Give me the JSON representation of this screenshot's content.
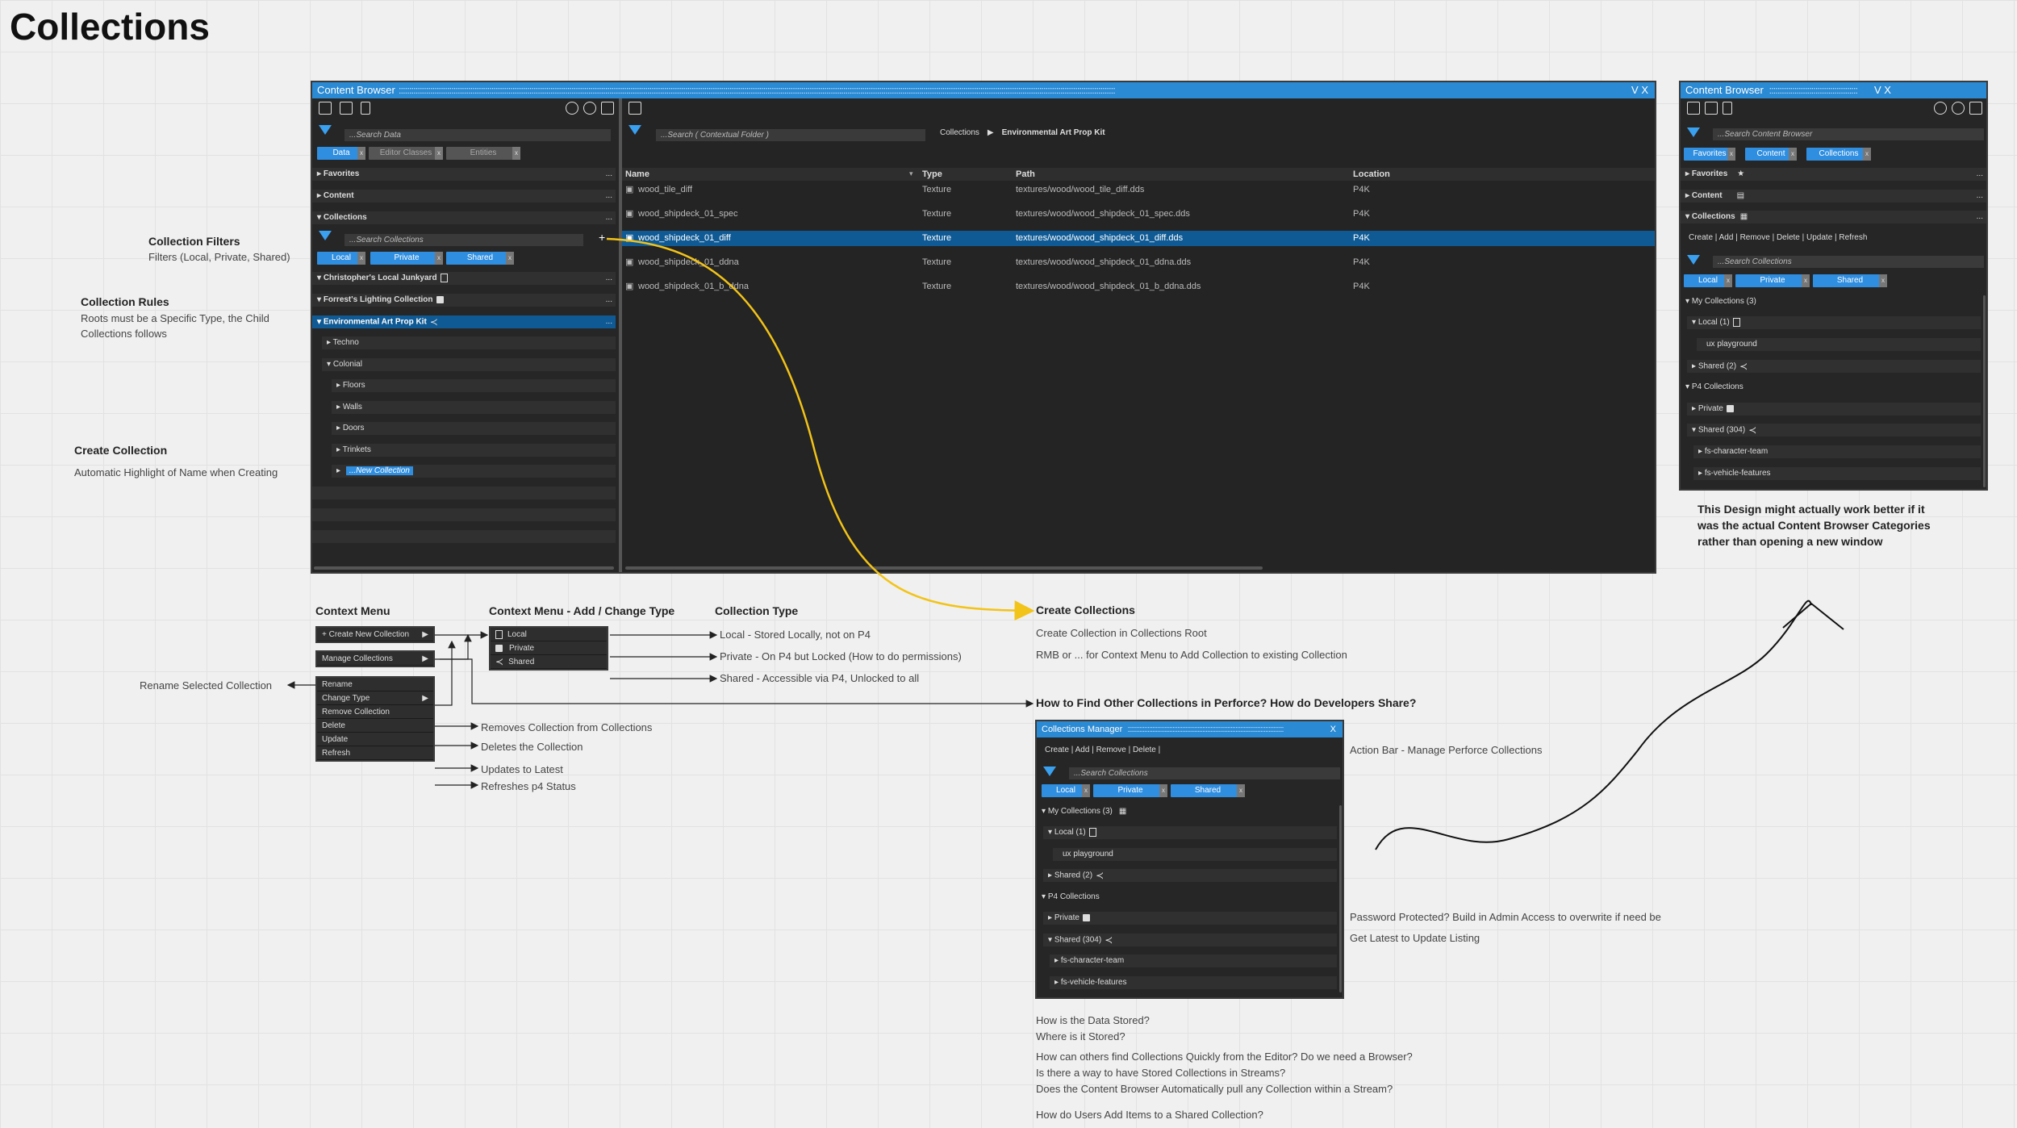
{
  "page": {
    "title": "Collections"
  },
  "notes": {
    "filters_title": "Collection Filters",
    "filters_text": "Filters (Local, Private, Shared)",
    "rules_title": "Collection Rules",
    "rules_text1": "Roots must be a Specific Type, the Child",
    "rules_text2": "Collections follows",
    "create_title": "Create Collection",
    "create_text": "Automatic Highlight of Name when Creating",
    "design_1": "This Design might actually work better if it",
    "design_2": "was the actual Content Browser Categories",
    "design_3": "rather than opening a new window",
    "context_menu": "Context Menu",
    "context_add": "Context Menu - Add / Change Type",
    "collection_type": "Collection Type",
    "type_local": "Local - Stored Locally, not on P4",
    "type_private": "Private - On P4 but Locked (How to do permissions)",
    "type_shared": "Shared - Accessible via P4, Unlocked to all",
    "create_collections": "Create Collections",
    "cc_1": "Create Collection in Collections Root",
    "cc_2": "RMB or ... for Context Menu to Add Collection to existing Collection",
    "how_find": "How to Find Other Collections in Perforce? How do Developers Share?",
    "rename_sel": "Rename Selected Collection",
    "removes": "Removes Collection from Collections",
    "deletes": "Deletes the Collection",
    "updates": "Updates to Latest",
    "refreshes": "Refreshes p4 Status",
    "action_bar": "Action Bar - Manage Perforce Collections",
    "password": "Password Protected?  Build in Admin Access to overwrite if need be",
    "get_latest": "Get Latest to Update Listing",
    "q1": "How is the Data Stored?",
    "q2": "Where is it Stored?",
    "q3": "How can others find Collections Quickly from the Editor? Do we need a Browser?",
    "q4": "Is there a way to have Stored Collections in Streams?",
    "q5": "Does the Content Browser Automatically pull any Collection within a Stream?",
    "q6": "How do Users Add Items to a Shared Collection?"
  },
  "main": {
    "title": "Content Browser",
    "vx": "V X",
    "search": "...Search Data",
    "context_search": "...Search ( Contextual Folder )",
    "crumb1": "Collections",
    "crumb2": "Environmental Art Prop Kit",
    "tabs": [
      "Data",
      "Editor Classes",
      "Entities"
    ],
    "favorites": "Favorites",
    "content": "Content",
    "collections": "Collections",
    "coll_search": "...Search Collections",
    "chips": [
      "Local",
      "Private",
      "Shared"
    ],
    "tree": [
      "Christopher's Local Junkyard",
      "Forrest's Lighting Collection",
      "Environmental Art Prop Kit",
      "Techno",
      "Colonial",
      "Floors",
      "Walls",
      "Doors",
      "Trinkets",
      "...New Collection"
    ],
    "cols": [
      "Name",
      "Type",
      "Path",
      "Location"
    ],
    "rows": [
      [
        "wood_tile_diff",
        "Texture",
        "textures/wood/wood_tile_diff.dds",
        "P4K"
      ],
      [
        "wood_shipdeck_01_spec",
        "Texture",
        "textures/wood/wood_shipdeck_01_spec.dds",
        "P4K"
      ],
      [
        "wood_shipdeck_01_diff",
        "Texture",
        "textures/wood/wood_shipdeck_01_diff.dds",
        "P4K"
      ],
      [
        "wood_shipdeck_01_ddna",
        "Texture",
        "textures/wood/wood_shipdeck_01_ddna.dds",
        "P4K"
      ],
      [
        "wood_shipdeck_01_b_ddna",
        "Texture",
        "textures/wood/wood_shipdeck_01_b_ddna.dds",
        "P4K"
      ]
    ]
  },
  "side": {
    "title": "Content Browser",
    "vx": "V X",
    "search": "...Search Content Browser",
    "tabs": [
      "Favorites",
      "Content",
      "Collections"
    ],
    "favorites": "Favorites",
    "content": "Content",
    "collections": "Collections",
    "actions": "Create | Add | Remove | Delete | Update | Refresh",
    "search2": "...Search Collections",
    "chips": [
      "Local",
      "Private",
      "Shared"
    ],
    "tree": [
      "My Collections (3)",
      "Local (1)",
      "ux playground",
      "Shared (2)",
      "P4 Collections",
      "Private",
      "Shared (304)",
      "fs-character-team",
      "fs-vehicle-features"
    ]
  },
  "cm": {
    "items1": [
      "+ Create New Collection",
      "Manage Collections"
    ],
    "items2": [
      "Rename",
      "Change Type",
      "Remove Collection",
      "Delete",
      "Update",
      "Refresh"
    ],
    "types": [
      "Local",
      "Private",
      "Shared"
    ]
  },
  "mgr": {
    "title": "Collections Manager",
    "x": "X",
    "actions": "Create | Add | Remove | Delete |",
    "search": "...Search Collections",
    "chips": [
      "Local",
      "Private",
      "Shared"
    ],
    "tree": [
      "My Collections (3)",
      "Local (1)",
      "ux playground",
      "Shared (2)",
      "P4 Collections",
      "Private",
      "Shared (304)",
      "fs-character-team",
      "fs-vehicle-features"
    ]
  },
  "colors": {
    "accent": "#2f8ee0",
    "selection": "#0f5a94",
    "panel": "#262626",
    "arrow_yellow": "#f2c318"
  }
}
